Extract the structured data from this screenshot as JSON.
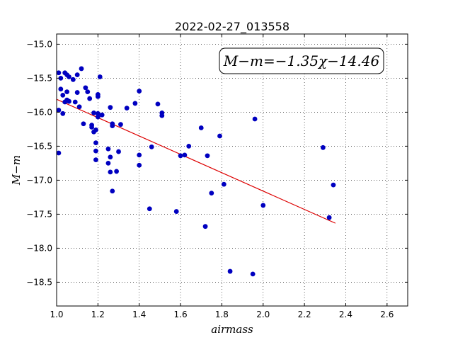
{
  "chart_data": {
    "type": "scatter",
    "title": "2022-02-27_013558",
    "xlabel": "airmass",
    "ylabel": "M−m",
    "xlim": [
      1.0,
      2.7
    ],
    "ylim": [
      -18.85,
      -14.85
    ],
    "y_inverted": true,
    "grid": true,
    "grid_style": "dotted",
    "x_ticks": [
      "1.0",
      "1.2",
      "1.4",
      "1.6",
      "1.8",
      "2.0",
      "2.2",
      "2.4",
      "2.6"
    ],
    "y_ticks": [
      "−15.0",
      "−15.5",
      "−16.0",
      "−16.5",
      "−17.0",
      "−17.5",
      "−18.0",
      "−18.5"
    ],
    "point_color": "#0000c0",
    "line_color": "#dd0000",
    "annotation": "M−m=−1.35χ−14.46",
    "points": {
      "x": [
        1.01,
        1.01,
        1.01,
        1.02,
        1.02,
        1.03,
        1.03,
        1.04,
        1.04,
        1.05,
        1.05,
        1.05,
        1.06,
        1.06,
        1.08,
        1.09,
        1.1,
        1.1,
        1.11,
        1.12,
        1.13,
        1.14,
        1.15,
        1.16,
        1.17,
        1.17,
        1.18,
        1.18,
        1.19,
        1.19,
        1.19,
        1.19,
        1.2,
        1.2,
        1.2,
        1.2,
        1.21,
        1.22,
        1.25,
        1.25,
        1.26,
        1.26,
        1.26,
        1.27,
        1.27,
        1.27,
        1.29,
        1.3,
        1.31,
        1.34,
        1.38,
        1.4,
        1.4,
        1.4,
        1.45,
        1.46,
        1.49,
        1.51,
        1.51,
        1.58,
        1.6,
        1.62,
        1.64,
        1.7,
        1.72,
        1.73,
        1.75,
        1.79,
        1.81,
        1.84,
        1.95,
        1.96,
        2.0,
        2.29,
        2.32,
        2.34
      ],
      "y": [
        -15.42,
        -15.97,
        -16.6,
        -15.5,
        -15.66,
        -15.75,
        -16.02,
        -15.42,
        -15.85,
        -15.45,
        -15.7,
        -15.82,
        -15.48,
        -15.84,
        -15.52,
        -15.85,
        -15.71,
        -15.45,
        -15.92,
        -15.36,
        -16.17,
        -15.64,
        -15.7,
        -15.8,
        -16.19,
        -16.22,
        -16.01,
        -16.29,
        -16.26,
        -16.45,
        -16.57,
        -16.7,
        -15.74,
        -15.77,
        -16.02,
        -16.07,
        -15.48,
        -16.04,
        -16.75,
        -16.54,
        -15.93,
        -16.66,
        -16.88,
        -16.17,
        -16.2,
        -17.16,
        -16.87,
        -16.58,
        -16.18,
        -15.94,
        -15.87,
        -15.69,
        -16.63,
        -16.78,
        -17.42,
        -16.51,
        -15.88,
        -16.01,
        -16.05,
        -17.46,
        -16.64,
        -16.63,
        -16.5,
        -16.23,
        -17.68,
        -16.64,
        -17.19,
        -16.35,
        -17.06,
        -18.34,
        -18.38,
        -16.1,
        -17.37,
        -16.52,
        -17.55,
        -17.07
      ]
    },
    "fit_line": {
      "slope": -1.35,
      "intercept": -14.46,
      "x_range": [
        1.0,
        2.35
      ]
    }
  }
}
